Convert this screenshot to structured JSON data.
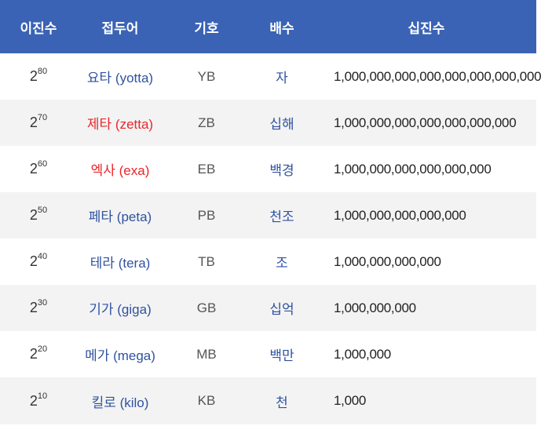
{
  "header": {
    "binary": "이진수",
    "prefix": "접두어",
    "symbol": "기호",
    "multiple": "배수",
    "decimal": "십진수"
  },
  "rows": [
    {
      "base": "2",
      "exp": "80",
      "prefix": "요타 (yotta)",
      "symbol": "YB",
      "multiple": "자",
      "decimal": "1,000,000,000,000,000,000,000,000",
      "prefix_color": "#2f52a0"
    },
    {
      "base": "2",
      "exp": "70",
      "prefix": "제타 (zetta)",
      "symbol": "ZB",
      "multiple": "십해",
      "decimal": "1,000,000,000,000,000,000,000",
      "prefix_color": "#e8262b"
    },
    {
      "base": "2",
      "exp": "60",
      "prefix": "엑사 (exa)",
      "symbol": "EB",
      "multiple": "백경",
      "decimal": "1,000,000,000,000,000,000",
      "prefix_color": "#e8262b"
    },
    {
      "base": "2",
      "exp": "50",
      "prefix": "페타 (peta)",
      "symbol": "PB",
      "multiple": "천조",
      "decimal": "1,000,000,000,000,000",
      "prefix_color": "#2f52a0"
    },
    {
      "base": "2",
      "exp": "40",
      "prefix": "테라 (tera)",
      "symbol": "TB",
      "multiple": "조",
      "decimal": "1,000,000,000,000",
      "prefix_color": "#2f52a0"
    },
    {
      "base": "2",
      "exp": "30",
      "prefix": "기가 (giga)",
      "symbol": "GB",
      "multiple": "십억",
      "decimal": "1,000,000,000",
      "prefix_color": "#2f52a0"
    },
    {
      "base": "2",
      "exp": "20",
      "prefix": "메가 (mega)",
      "symbol": "MB",
      "multiple": "백만",
      "decimal": "1,000,000",
      "prefix_color": "#2f52a0"
    },
    {
      "base": "2",
      "exp": "10",
      "prefix": "킬로 (kilo)",
      "symbol": "KB",
      "multiple": "천",
      "decimal": "1,000",
      "prefix_color": "#2f52a0"
    }
  ],
  "colors": {
    "header_bg": "#3a63b5",
    "alt_row_bg": "#f3f3f3",
    "accent_blue": "#2f52a0",
    "accent_red": "#e8262b"
  }
}
